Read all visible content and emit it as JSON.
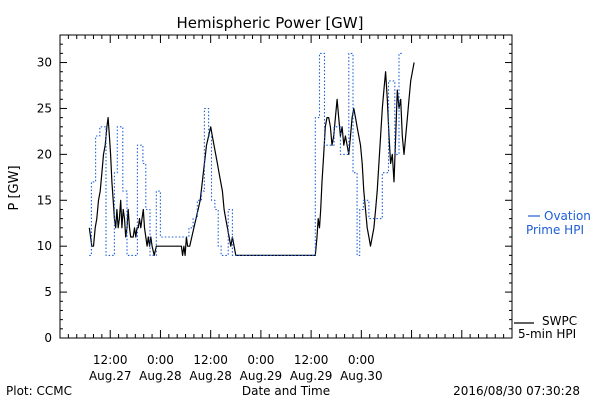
{
  "chart_data": {
    "type": "line",
    "title": "Hemispheric Power [GW]",
    "xlabel": "Date and Time",
    "ylabel": "P [GW]",
    "ylim": [
      0,
      33
    ],
    "xlim": [
      0,
      108
    ],
    "x_unit": "hours since 2016-08-27 00:00",
    "y_ticks": [
      0,
      5,
      10,
      15,
      20,
      25,
      30
    ],
    "x_ticks": [
      {
        "x": 12,
        "line1": "12:00",
        "line2": "Aug.27"
      },
      {
        "x": 24,
        "line1": "0:00",
        "line2": "Aug.28"
      },
      {
        "x": 36,
        "line1": "12:00",
        "line2": "Aug.28"
      },
      {
        "x": 48,
        "line1": "0:00",
        "line2": "Aug.29"
      },
      {
        "x": 60,
        "line1": "12:00",
        "line2": "Aug.29"
      },
      {
        "x": 72,
        "line1": "0:00",
        "line2": "Aug.30"
      }
    ],
    "grid": false,
    "legend_position": "right",
    "series": [
      {
        "name": "SWPC 5-min HPI",
        "color": "#000000",
        "style": "solid",
        "points": [
          [
            7.0,
            12
          ],
          [
            7.3,
            11
          ],
          [
            7.6,
            10
          ],
          [
            8.0,
            10
          ],
          [
            8.4,
            12
          ],
          [
            8.8,
            13
          ],
          [
            9.2,
            15
          ],
          [
            9.6,
            16
          ],
          [
            10.0,
            18
          ],
          [
            10.4,
            20
          ],
          [
            10.8,
            21
          ],
          [
            11.2,
            23
          ],
          [
            11.5,
            24
          ],
          [
            11.8,
            22
          ],
          [
            12.1,
            20
          ],
          [
            12.4,
            17
          ],
          [
            12.7,
            15
          ],
          [
            13.0,
            13
          ],
          [
            13.3,
            12
          ],
          [
            13.6,
            14
          ],
          [
            13.9,
            12
          ],
          [
            14.2,
            13
          ],
          [
            14.5,
            15
          ],
          [
            14.8,
            12
          ],
          [
            15.1,
            14
          ],
          [
            15.4,
            13
          ],
          [
            15.7,
            11
          ],
          [
            16.0,
            12
          ],
          [
            16.3,
            14
          ],
          [
            16.6,
            12
          ],
          [
            16.9,
            11
          ],
          [
            17.2,
            11
          ],
          [
            17.5,
            11
          ],
          [
            17.8,
            12
          ],
          [
            18.1,
            11
          ],
          [
            18.4,
            12
          ],
          [
            18.7,
            12
          ],
          [
            19.0,
            13
          ],
          [
            19.3,
            12
          ],
          [
            19.6,
            13
          ],
          [
            19.9,
            14
          ],
          [
            20.2,
            12
          ],
          [
            20.5,
            11
          ],
          [
            20.8,
            10
          ],
          [
            21.1,
            11
          ],
          [
            21.4,
            10
          ],
          [
            21.7,
            11
          ],
          [
            22.0,
            10
          ],
          [
            22.5,
            9
          ],
          [
            23.0,
            10
          ],
          [
            24.0,
            10
          ],
          [
            26.0,
            10
          ],
          [
            28.0,
            10
          ],
          [
            29.0,
            10
          ],
          [
            29.3,
            9
          ],
          [
            29.6,
            10
          ],
          [
            29.9,
            9
          ],
          [
            30.2,
            11
          ],
          [
            30.5,
            10
          ],
          [
            31.0,
            10
          ],
          [
            31.5,
            11
          ],
          [
            32.0,
            12
          ],
          [
            32.5,
            13
          ],
          [
            33.0,
            14
          ],
          [
            33.5,
            15
          ],
          [
            34.0,
            17
          ],
          [
            34.5,
            19
          ],
          [
            35.0,
            21
          ],
          [
            35.5,
            22
          ],
          [
            36.0,
            23
          ],
          [
            36.4,
            22
          ],
          [
            36.8,
            21
          ],
          [
            37.2,
            20
          ],
          [
            37.6,
            19
          ],
          [
            38.0,
            18
          ],
          [
            38.4,
            17
          ],
          [
            38.8,
            16
          ],
          [
            39.2,
            14
          ],
          [
            39.6,
            13
          ],
          [
            40.0,
            12
          ],
          [
            40.4,
            11
          ],
          [
            40.8,
            10
          ],
          [
            41.2,
            11
          ],
          [
            41.6,
            10
          ],
          [
            42.0,
            9
          ],
          [
            45.0,
            9
          ],
          [
            50.0,
            9
          ],
          [
            55.0,
            9
          ],
          [
            60.0,
            9
          ],
          [
            61.0,
            9
          ],
          [
            61.4,
            11
          ],
          [
            61.7,
            13
          ],
          [
            62.0,
            12
          ],
          [
            62.3,
            14
          ],
          [
            62.6,
            17
          ],
          [
            63.0,
            20
          ],
          [
            63.4,
            23
          ],
          [
            63.8,
            24
          ],
          [
            64.2,
            24
          ],
          [
            64.6,
            23
          ],
          [
            65.0,
            21
          ],
          [
            65.4,
            22
          ],
          [
            65.8,
            24
          ],
          [
            66.2,
            26
          ],
          [
            66.6,
            24
          ],
          [
            67.0,
            22
          ],
          [
            67.4,
            23
          ],
          [
            67.8,
            21
          ],
          [
            68.2,
            22
          ],
          [
            68.6,
            21
          ],
          [
            69.0,
            20
          ],
          [
            69.4,
            22
          ],
          [
            69.8,
            24
          ],
          [
            70.2,
            25
          ],
          [
            70.6,
            24
          ],
          [
            71.0,
            23
          ],
          [
            71.4,
            22
          ],
          [
            71.8,
            21
          ],
          [
            72.2,
            19
          ],
          [
            72.6,
            16
          ],
          [
            73.0,
            14
          ],
          [
            73.4,
            12
          ],
          [
            73.8,
            11
          ],
          [
            74.2,
            10
          ],
          [
            74.6,
            11
          ],
          [
            75.0,
            12
          ],
          [
            75.4,
            14
          ],
          [
            75.8,
            16
          ],
          [
            76.2,
            19
          ],
          [
            76.6,
            22
          ],
          [
            77.0,
            25
          ],
          [
            77.4,
            27
          ],
          [
            77.8,
            29
          ],
          [
            78.2,
            26
          ],
          [
            78.6,
            22
          ],
          [
            79.0,
            19
          ],
          [
            79.4,
            20
          ],
          [
            79.8,
            17
          ],
          [
            80.2,
            22
          ],
          [
            80.6,
            27
          ],
          [
            81.0,
            25
          ],
          [
            81.4,
            26
          ],
          [
            81.8,
            22
          ],
          [
            82.2,
            20
          ],
          [
            82.6,
            22
          ],
          [
            83.0,
            24
          ],
          [
            83.4,
            26
          ],
          [
            83.8,
            28
          ],
          [
            84.2,
            29
          ],
          [
            84.6,
            30
          ]
        ]
      },
      {
        "name": "Ovation Prime HPI",
        "color": "#1e5fd8",
        "style": "dotted",
        "points": [
          [
            7.0,
            9
          ],
          [
            7.5,
            17
          ],
          [
            8.5,
            22
          ],
          [
            9.5,
            23
          ],
          [
            11.0,
            9
          ],
          [
            13.0,
            18
          ],
          [
            13.7,
            23
          ],
          [
            15.0,
            16
          ],
          [
            16.0,
            9
          ],
          [
            18.5,
            21
          ],
          [
            19.8,
            19
          ],
          [
            20.5,
            14
          ],
          [
            21.5,
            9
          ],
          [
            23.0,
            16
          ],
          [
            24.0,
            11
          ],
          [
            28.0,
            11
          ],
          [
            30.0,
            11
          ],
          [
            30.8,
            12
          ],
          [
            31.8,
            13
          ],
          [
            32.8,
            15
          ],
          [
            33.8,
            16
          ],
          [
            34.5,
            25
          ],
          [
            35.5,
            22
          ],
          [
            36.2,
            15
          ],
          [
            37.0,
            14
          ],
          [
            37.8,
            10
          ],
          [
            38.5,
            9
          ],
          [
            40.2,
            14
          ],
          [
            41.2,
            9
          ],
          [
            45.0,
            9
          ],
          [
            55.0,
            9
          ],
          [
            61.0,
            9
          ],
          [
            61.0,
            24
          ],
          [
            62.0,
            31
          ],
          [
            63.2,
            21
          ],
          [
            65.5,
            23
          ],
          [
            67.0,
            20
          ],
          [
            69.0,
            31
          ],
          [
            70.0,
            18
          ],
          [
            71.0,
            9
          ],
          [
            71.6,
            14
          ],
          [
            72.5,
            15
          ],
          [
            73.8,
            13
          ],
          [
            75.5,
            13
          ],
          [
            77.0,
            18
          ],
          [
            78.5,
            28
          ],
          [
            80.0,
            20
          ],
          [
            81.0,
            31
          ],
          [
            82.0,
            31
          ]
        ]
      }
    ]
  },
  "legend": {
    "swpc_line1": "SWPC",
    "swpc_line2": "5-min HPI",
    "ovation_line1": "Ovation",
    "ovation_line2": "Prime HPI"
  },
  "footer": {
    "left": "Plot: CCMC",
    "right": "2016/08/30 07:30:28"
  }
}
